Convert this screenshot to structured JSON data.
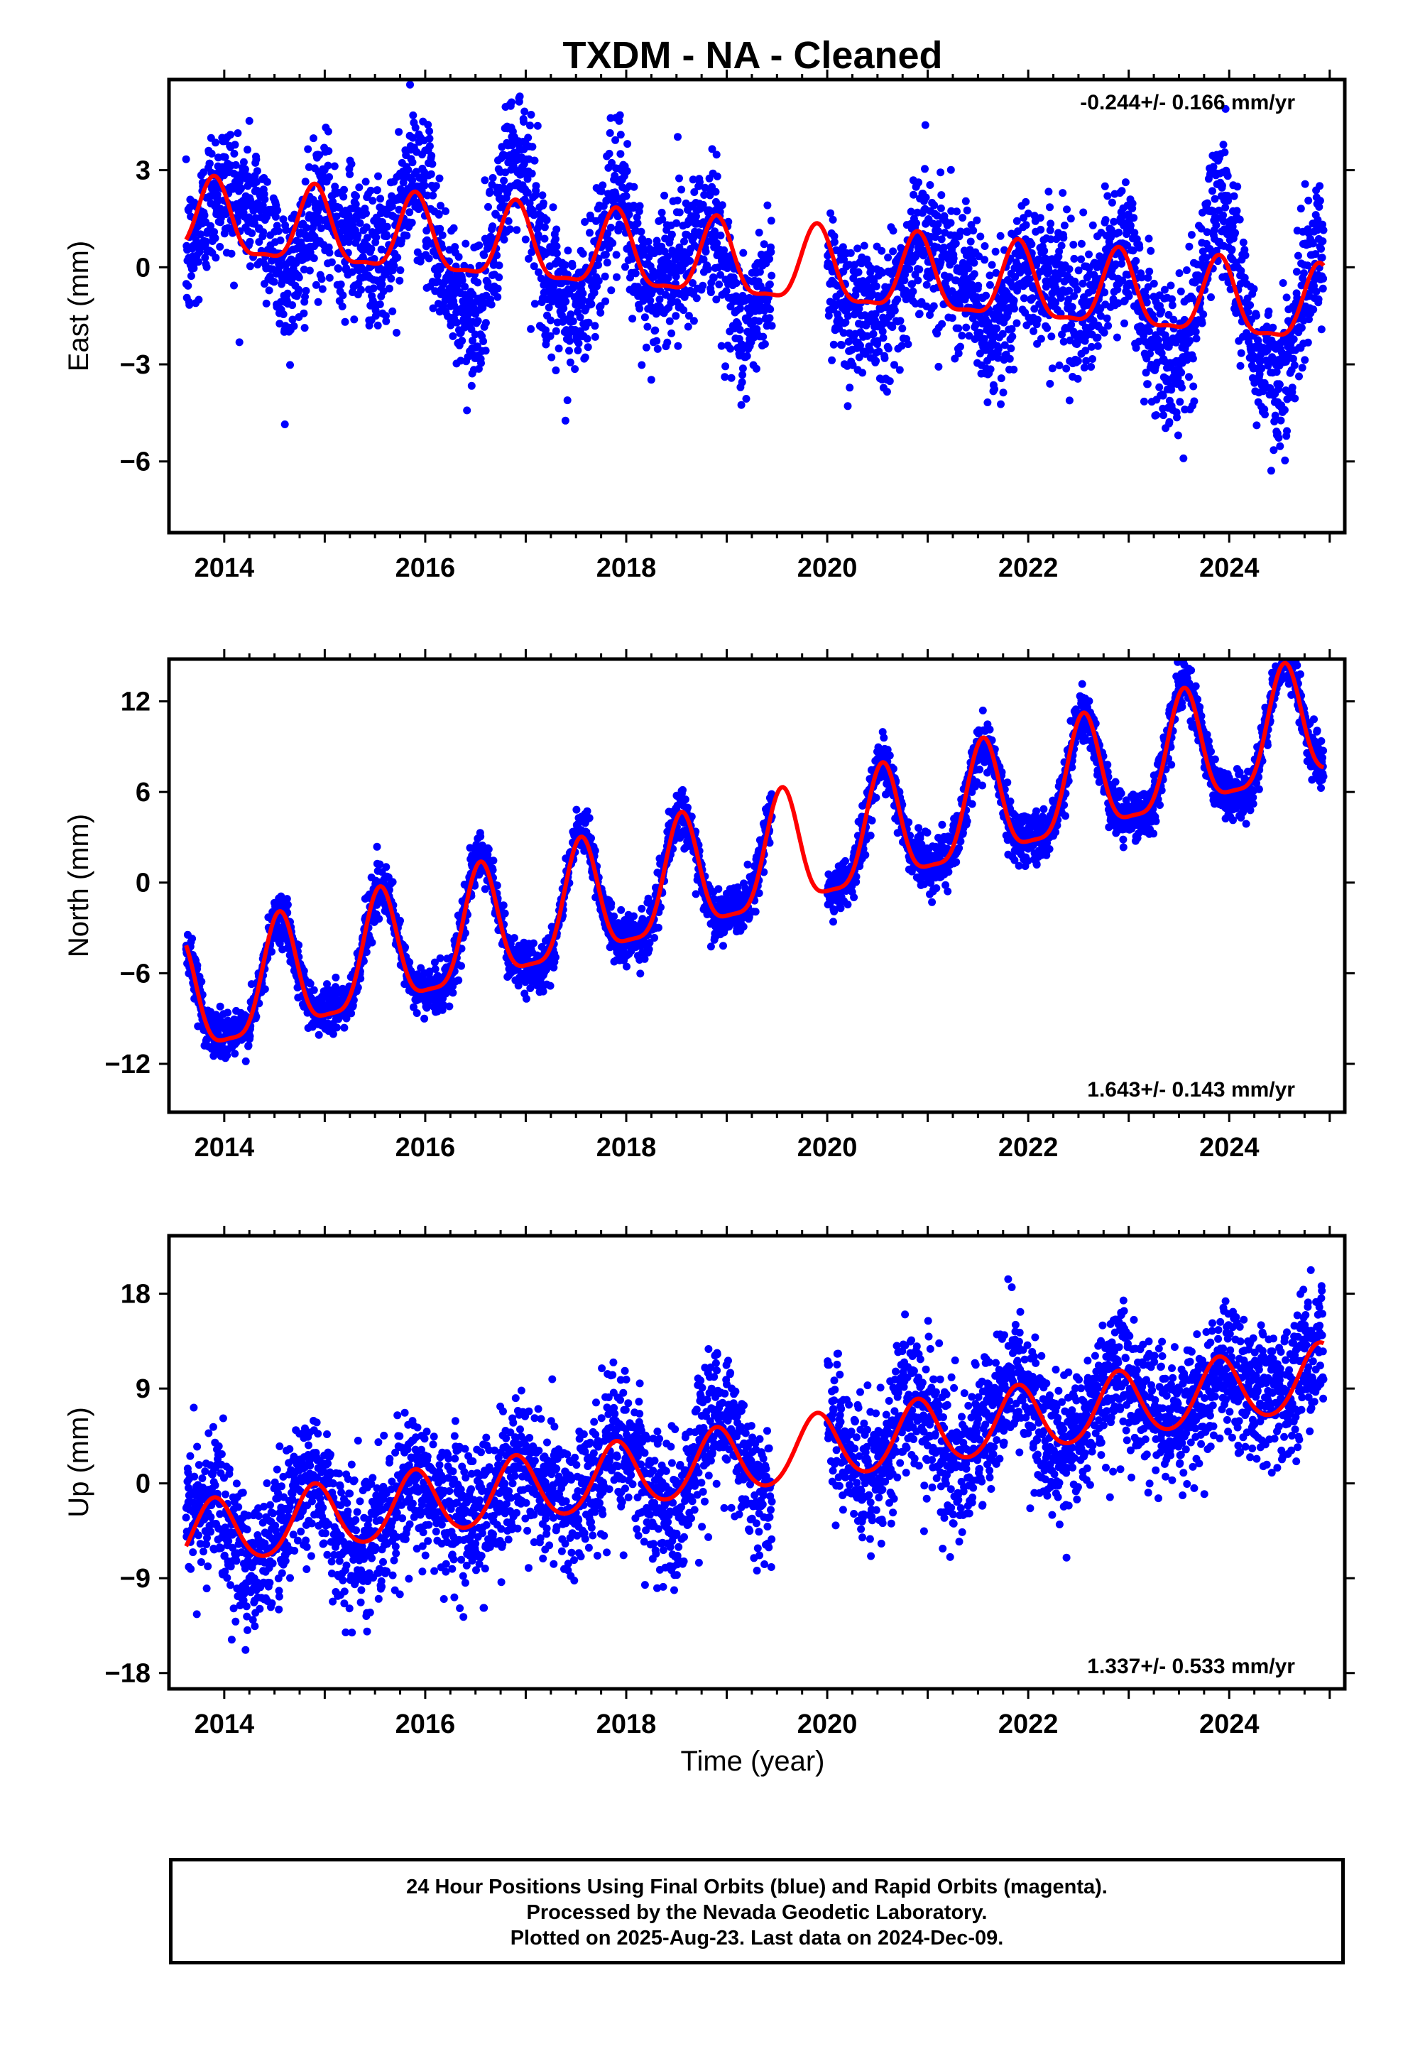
{
  "chart_data": {
    "type": "scatter",
    "title": "TXDM  - NA - Cleaned",
    "xlabel": "Time (year)",
    "xlim": [
      2013.45,
      2025.15
    ],
    "x_ticks": [
      "2014",
      "2016",
      "2018",
      "2020",
      "2022",
      "2024"
    ],
    "data_span": [
      2013.62,
      2024.94
    ],
    "data_gap": [
      2019.45,
      2020.0
    ],
    "colors": {
      "dots": "#0000ff",
      "fit": "#ff0000",
      "frame": "#000000"
    },
    "panels": [
      {
        "component": "east",
        "ylabel": "East (mm)",
        "ylim": [
          -8.2,
          5.8
        ],
        "y_ticks": [
          3,
          0,
          -3,
          -6
        ],
        "y_tick_labels": [
          "3",
          "0",
          "−3",
          "−6"
        ],
        "rate_text": "-0.244+/- 0.166 mm/yr",
        "rate_position": "top-right",
        "trend": {
          "value_at_2014": 1.3,
          "rate_mm_per_yr": -0.244
        },
        "seasonal": {
          "amplitude": 1.15,
          "peak_month_fraction": 0.9,
          "semi_amplitude": 0.35
        },
        "scatter": {
          "noise_std": 1.1,
          "wander_amplitude": 1.6
        }
      },
      {
        "component": "north",
        "ylabel": "North (mm)",
        "ylim": [
          -15.2,
          14.8
        ],
        "y_ticks": [
          12,
          6,
          0,
          -6,
          -12
        ],
        "y_tick_labels": [
          "12",
          "6",
          "0",
          "−6",
          "−12"
        ],
        "rate_text": "1.643+/- 0.143 mm/yr",
        "rate_position": "bottom-right",
        "trend": {
          "value_at_2014": -7.6,
          "rate_mm_per_yr": 1.643
        },
        "seasonal": {
          "amplitude": 3.8,
          "peak_month_fraction": 0.55,
          "semi_amplitude": 1.0
        },
        "scatter": {
          "noise_std": 0.8,
          "wander_amplitude": 0.4
        }
      },
      {
        "component": "up",
        "ylabel": "Up (mm)",
        "ylim": [
          -19.5,
          23.5
        ],
        "y_ticks": [
          18,
          9,
          0,
          -9,
          -18
        ],
        "y_tick_labels": [
          "18",
          "9",
          "0",
          "−9",
          "−18"
        ],
        "rate_text": "1.337+/- 0.533 mm/yr",
        "rate_position": "bottom-right",
        "trend": {
          "value_at_2014": -4.6,
          "rate_mm_per_yr": 1.337
        },
        "seasonal": {
          "amplitude": 3.1,
          "peak_month_fraction": 0.9,
          "semi_amplitude": 0.3
        },
        "scatter": {
          "noise_std": 3.3,
          "wander_amplitude": 1.8
        }
      }
    ]
  },
  "footer": {
    "line1": "24 Hour Positions Using Final Orbits (blue) and Rapid Orbits (magenta).",
    "line2": "Processed by the Nevada Geodetic Laboratory.",
    "line3": "Plotted on 2025-Aug-23. Last data on 2024-Dec-09."
  }
}
